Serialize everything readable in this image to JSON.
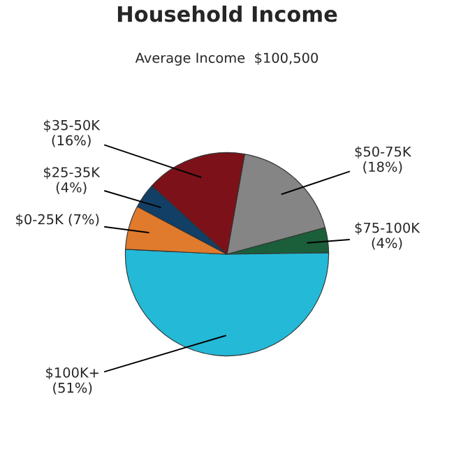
{
  "chart_data": {
    "type": "pie",
    "title": "Household Income",
    "subtitle": "Average Income  $100,500",
    "categories": [
      "$50-75K",
      "$75-100K",
      "$100K+",
      "$0-25K",
      "$25-35K",
      "$35-50K"
    ],
    "values": [
      18,
      4,
      51,
      7,
      4,
      16
    ],
    "value_labels": [
      "(18%)",
      "(4%)",
      "(51%)",
      "(7%)",
      "(4%)",
      "(16%)"
    ],
    "colors": [
      "#858585",
      "#1b5e3a",
      "#24b9d6",
      "#e07a2c",
      "#123f66",
      "#7c1119"
    ]
  }
}
